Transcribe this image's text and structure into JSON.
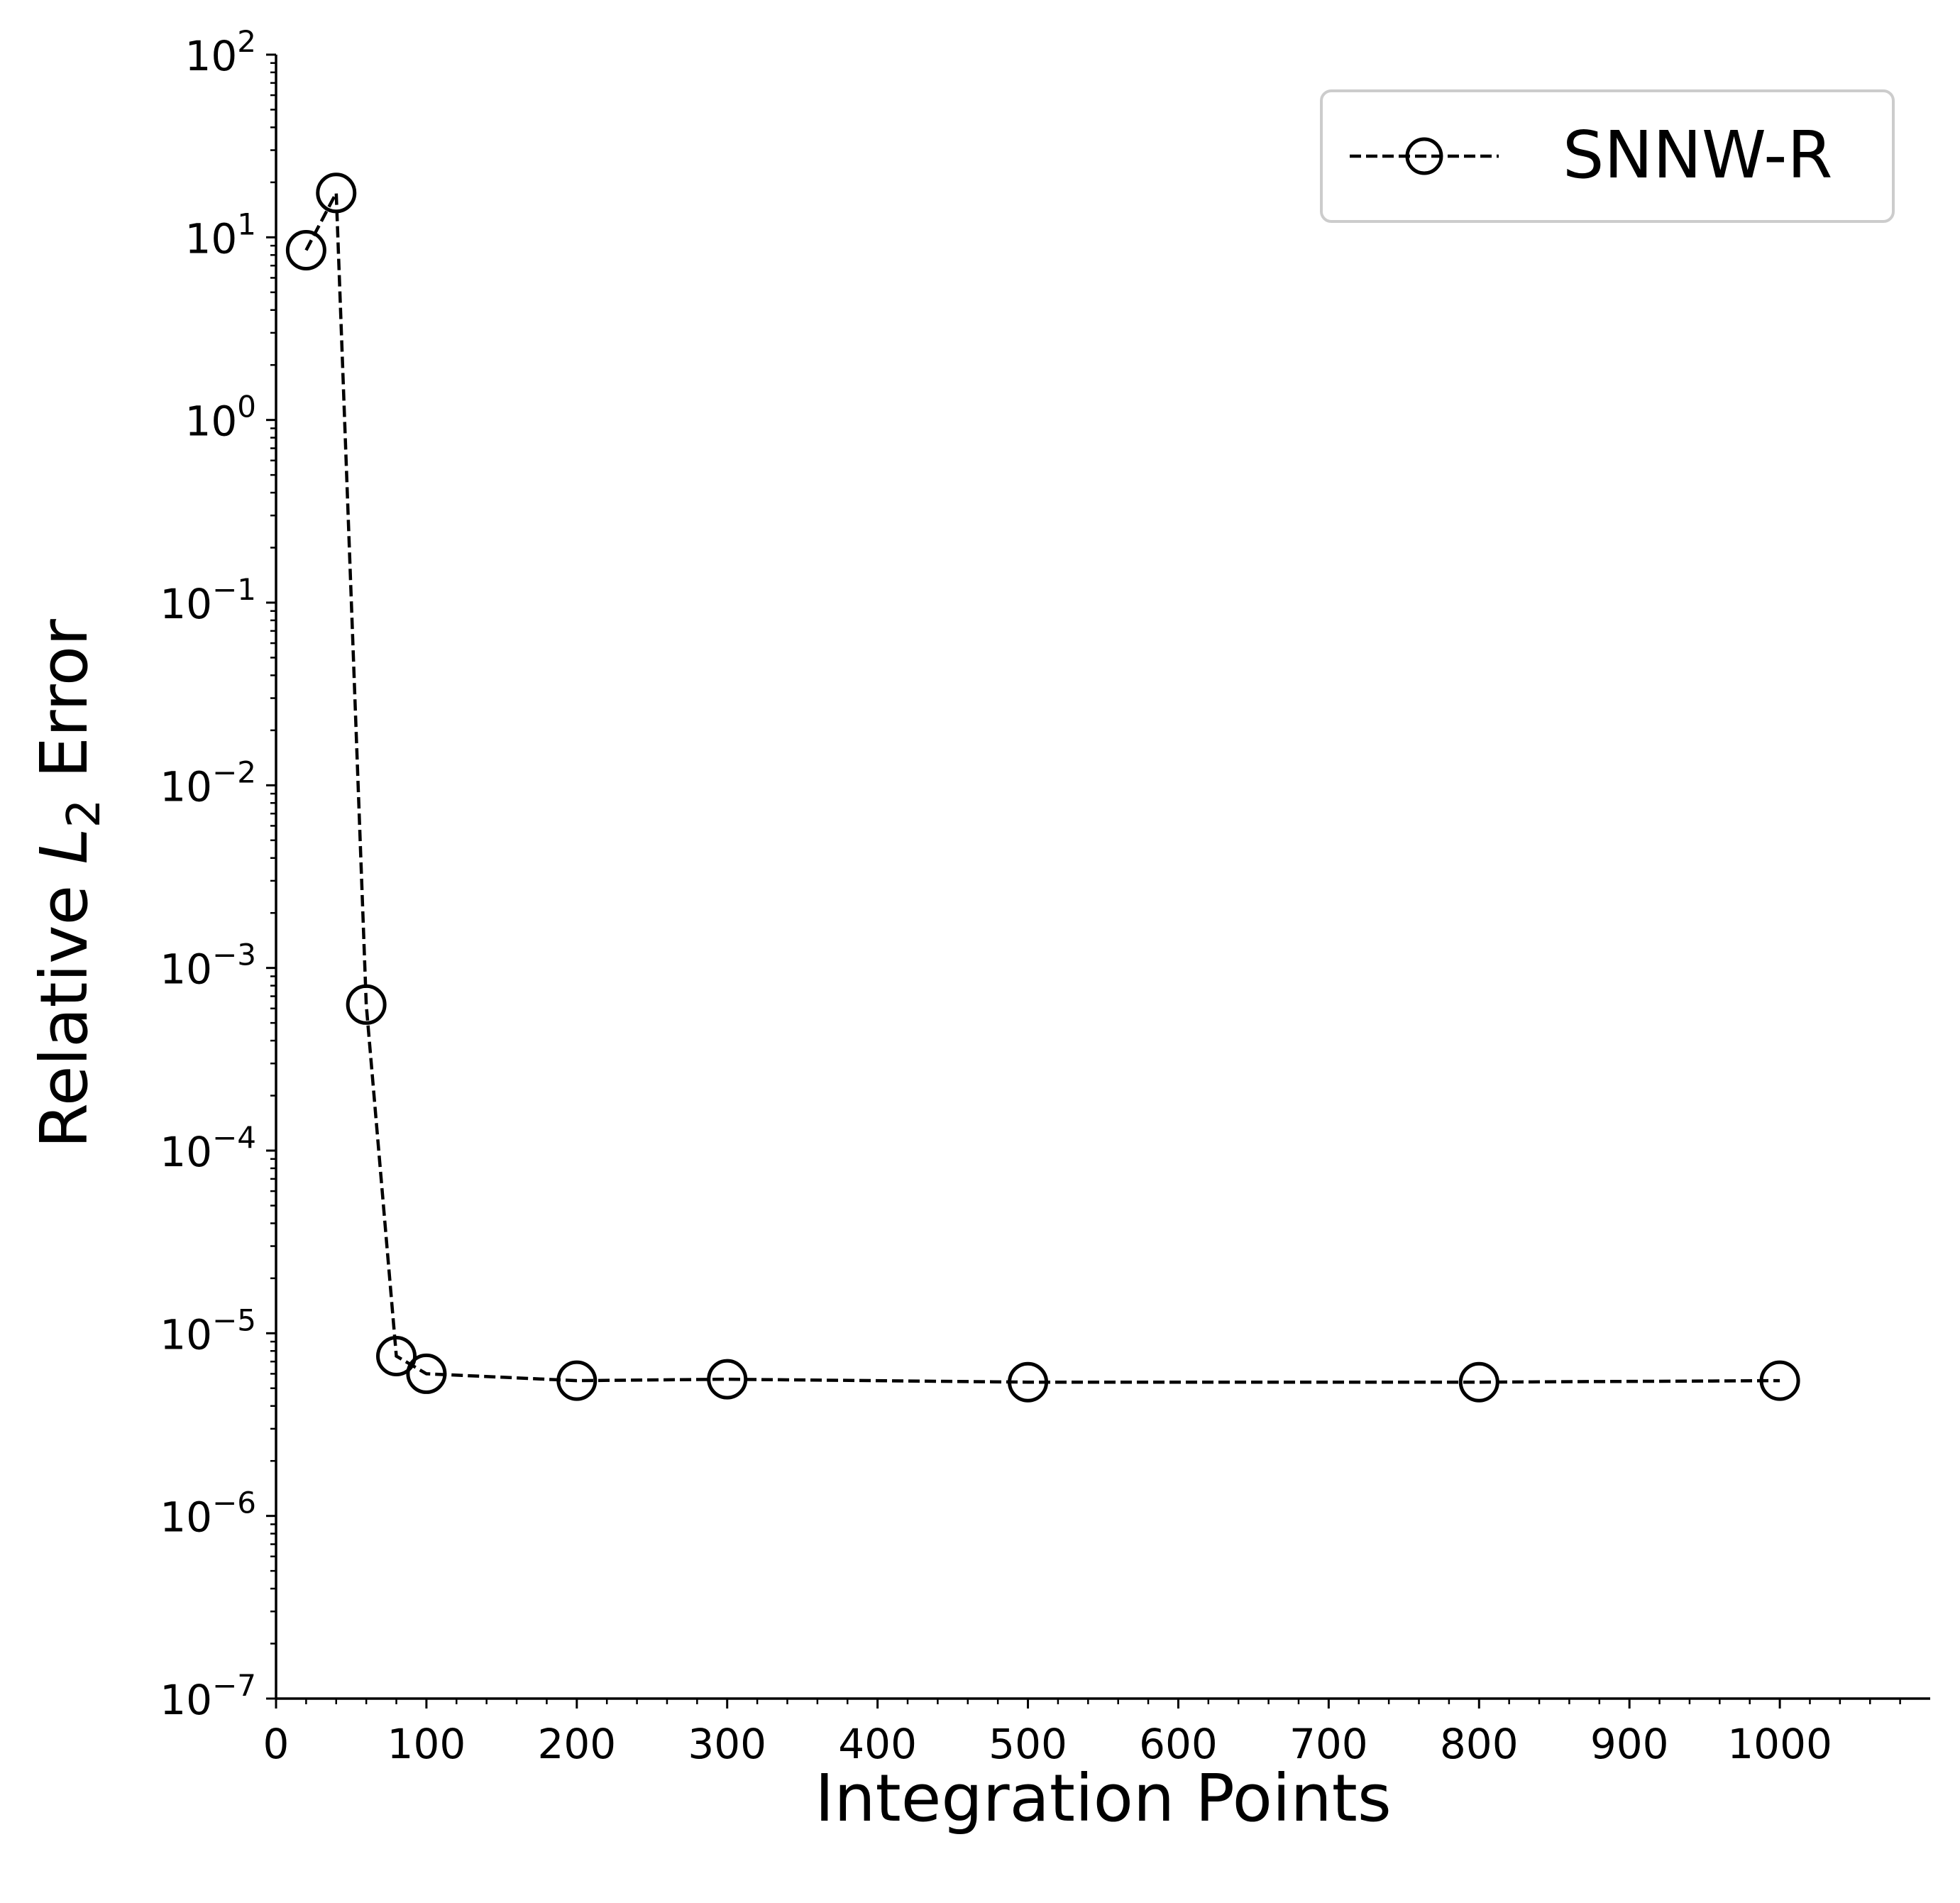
{
  "chart_data": {
    "type": "line",
    "xlabel": "Integration Points",
    "ylabel": {
      "prefix": "Relative ",
      "symbol": "L",
      "subscript": "2",
      "suffix": " Error"
    },
    "xlim": [
      0,
      1100
    ],
    "ylim": [
      1e-07,
      100
    ],
    "yscale": "log",
    "grid": false,
    "legend_position": "top-right",
    "x_ticks": [
      0,
      100,
      200,
      300,
      400,
      500,
      600,
      700,
      800,
      900,
      1000
    ],
    "x_tick_labels": [
      "0",
      "100",
      "200",
      "300",
      "400",
      "500",
      "600",
      "700",
      "800",
      "900",
      "1000"
    ],
    "y_ticks": [
      {
        "base": "10",
        "exp": "2"
      },
      {
        "base": "10",
        "exp": "1"
      },
      {
        "base": "10",
        "exp": "0"
      },
      {
        "base": "10",
        "exp": "−1"
      },
      {
        "base": "10",
        "exp": "−2"
      },
      {
        "base": "10",
        "exp": "−3"
      },
      {
        "base": "10",
        "exp": "−4"
      },
      {
        "base": "10",
        "exp": "−5"
      },
      {
        "base": "10",
        "exp": "−6"
      },
      {
        "base": "10",
        "exp": "−7"
      }
    ],
    "series": [
      {
        "name": "SNNW-R",
        "color": "#000000",
        "line_style": "dashed",
        "marker": "open-circle",
        "x": [
          20,
          40,
          60,
          80,
          100,
          200,
          300,
          500,
          800,
          1000
        ],
        "y": [
          8.5,
          17.5,
          0.00063,
          7.5e-06,
          6e-06,
          5.5e-06,
          5.6e-06,
          5.4e-06,
          5.4e-06,
          5.5e-06
        ]
      }
    ]
  }
}
